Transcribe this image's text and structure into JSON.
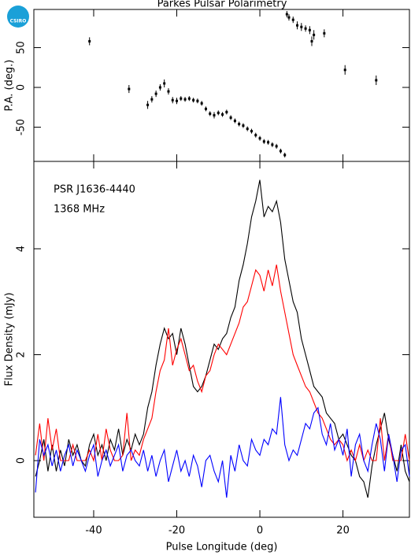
{
  "logo": "CSIRO",
  "chart_data": [
    {
      "type": "errorbar",
      "title": "Parkes Pulsar Polarimetry",
      "y_label": "P.A. (deg.)",
      "x": [
        -41,
        -31.5,
        -27,
        -26,
        -25,
        -24,
        -23,
        -22,
        -21,
        -20,
        -19,
        -18,
        -17,
        -16,
        -15,
        -14,
        -13,
        -12,
        -11,
        -10,
        -9,
        -8,
        -7,
        -6,
        -5,
        -4,
        -3,
        -2,
        -1,
        0,
        1,
        2,
        3,
        4,
        5,
        6,
        6.5,
        7,
        8,
        9,
        10,
        11,
        12,
        12.5,
        13,
        15.5,
        20.5,
        28
      ],
      "values": [
        58,
        -2,
        -22,
        -15,
        -8,
        0,
        5,
        -5,
        -16,
        -17,
        -14,
        -15,
        -14,
        -16,
        -17,
        -20,
        -27,
        -33,
        -35,
        -32,
        -34,
        -31,
        -38,
        -42,
        -46,
        -48,
        -52,
        -55,
        -60,
        -64,
        -68,
        -69,
        -72,
        -74,
        -80,
        -85,
        92,
        88,
        85,
        78,
        76,
        74,
        72,
        58,
        66,
        68,
        22,
        9
      ],
      "errors": [
        5,
        5,
        5,
        4,
        4,
        4,
        5,
        4,
        4,
        4,
        3,
        3,
        3,
        3,
        3,
        3,
        3,
        3,
        4,
        3,
        3,
        3,
        3,
        3,
        3,
        3,
        3,
        3,
        3,
        3,
        3,
        3,
        3,
        3,
        3,
        3,
        4,
        4,
        4,
        5,
        5,
        4,
        5,
        6,
        6,
        5,
        6,
        6
      ],
      "color": "#000000",
      "xlim": [
        -54.4,
        36
      ],
      "xticks": [
        -40,
        -20,
        0,
        20
      ],
      "ylim": [
        -93,
        98
      ],
      "yticks": [
        -50,
        0,
        50
      ]
    },
    {
      "type": "line",
      "x_label": "Pulse Longitude (deg)",
      "y_label": "Flux Density (mJy)",
      "annotations": [
        "PSR J1636-4440",
        "1368 MHz"
      ],
      "x": [
        -54,
        -53,
        -52,
        -51,
        -50,
        -49,
        -48,
        -47,
        -46,
        -45,
        -44,
        -43,
        -42,
        -41,
        -40,
        -39,
        -38,
        -37,
        -36,
        -35,
        -34,
        -33,
        -32,
        -31,
        -30,
        -29,
        -28,
        -27,
        -26,
        -25,
        -24,
        -23,
        -22,
        -21,
        -20,
        -19,
        -18,
        -17,
        -16,
        -15,
        -14,
        -13,
        -12,
        -11,
        -10,
        -9,
        -8,
        -7,
        -6,
        -5,
        -4,
        -3,
        -2,
        -1,
        0,
        1,
        2,
        3,
        4,
        5,
        6,
        7,
        8,
        9,
        10,
        11,
        12,
        13,
        14,
        15,
        16,
        17,
        18,
        19,
        20,
        21,
        22,
        23,
        24,
        25,
        26,
        27,
        28,
        29,
        30,
        31,
        32,
        33,
        34,
        35,
        36
      ],
      "series": [
        {
          "color": "#000000",
          "values": [
            -0.3,
            0.0,
            0.4,
            -0.2,
            0.3,
            -0.2,
            0.2,
            -0.1,
            0.4,
            0.1,
            0.3,
            0.0,
            -0.1,
            0.3,
            0.5,
            0.1,
            0.3,
            0.0,
            0.4,
            0.2,
            0.6,
            0.1,
            0.4,
            0.2,
            0.5,
            0.3,
            0.5,
            1.0,
            1.3,
            1.8,
            2.2,
            2.5,
            2.3,
            2.4,
            2.0,
            2.5,
            2.2,
            1.8,
            1.4,
            1.3,
            1.4,
            1.6,
            1.9,
            2.2,
            2.1,
            2.3,
            2.4,
            2.7,
            2.9,
            3.4,
            3.7,
            4.1,
            4.6,
            4.9,
            5.3,
            4.6,
            4.8,
            4.7,
            4.9,
            4.5,
            3.8,
            3.4,
            3.0,
            2.8,
            2.3,
            2.0,
            1.7,
            1.4,
            1.3,
            1.2,
            0.9,
            0.8,
            0.7,
            0.4,
            0.5,
            0.3,
            0.1,
            0.0,
            -0.3,
            -0.4,
            -0.7,
            -0.1,
            0.3,
            0.6,
            0.9,
            0.4,
            0.1,
            -0.2,
            0.3,
            -0.2,
            -0.4
          ]
        },
        {
          "color": "#ff0000",
          "values": [
            0.1,
            0.7,
            0.0,
            0.8,
            0.2,
            0.6,
            0.0,
            0.0,
            0.0,
            0.3,
            0.0,
            0.0,
            0.0,
            0.2,
            0.0,
            0.5,
            0.0,
            0.6,
            0.2,
            0.0,
            0.0,
            0.1,
            0.9,
            0.0,
            0.2,
            0.1,
            0.4,
            0.6,
            0.8,
            1.3,
            1.7,
            1.9,
            2.5,
            1.8,
            2.1,
            2.3,
            2.0,
            1.7,
            1.8,
            1.5,
            1.3,
            1.6,
            1.7,
            2.0,
            2.2,
            2.1,
            2.0,
            2.2,
            2.4,
            2.6,
            2.9,
            3.0,
            3.3,
            3.6,
            3.5,
            3.2,
            3.6,
            3.3,
            3.7,
            3.2,
            2.8,
            2.4,
            2.0,
            1.8,
            1.6,
            1.4,
            1.3,
            1.1,
            0.9,
            0.8,
            0.6,
            0.4,
            0.3,
            0.4,
            0.3,
            0.0,
            0.2,
            0.0,
            0.3,
            0.0,
            0.2,
            0.0,
            0.0,
            0.8,
            0.0,
            0.5,
            0.0,
            0.0,
            0.0,
            0.5,
            0.0
          ]
        },
        {
          "color": "#0000ff",
          "values": [
            -0.6,
            0.4,
            0.1,
            0.3,
            -0.1,
            0.2,
            -0.2,
            0.1,
            0.3,
            -0.1,
            0.2,
            0.0,
            -0.2,
            0.1,
            0.3,
            -0.3,
            0.0,
            0.2,
            -0.1,
            0.1,
            0.3,
            -0.2,
            0.1,
            0.2,
            0.0,
            -0.1,
            0.2,
            -0.2,
            0.1,
            -0.3,
            0.0,
            0.2,
            -0.4,
            -0.1,
            0.2,
            -0.2,
            0.0,
            -0.3,
            0.1,
            -0.1,
            -0.5,
            0.0,
            0.1,
            -0.2,
            -0.4,
            0.0,
            -0.7,
            0.1,
            -0.2,
            0.3,
            0.0,
            -0.1,
            0.4,
            0.2,
            0.1,
            0.4,
            0.3,
            0.6,
            0.5,
            1.2,
            0.3,
            0.0,
            0.2,
            0.1,
            0.4,
            0.7,
            0.6,
            0.9,
            1.0,
            0.5,
            0.3,
            0.7,
            0.2,
            0.4,
            0.1,
            0.6,
            -0.3,
            0.3,
            0.5,
            0.0,
            -0.2,
            0.3,
            0.7,
            0.4,
            -0.2,
            0.5,
            0.1,
            -0.4,
            0.2,
            0.3,
            -0.3
          ]
        }
      ],
      "xlim": [
        -54.4,
        36
      ],
      "xticks": [
        -40,
        -20,
        0,
        20
      ],
      "ylim": [
        -1.07,
        5.65
      ],
      "yticks": [
        0,
        2,
        4
      ]
    }
  ]
}
